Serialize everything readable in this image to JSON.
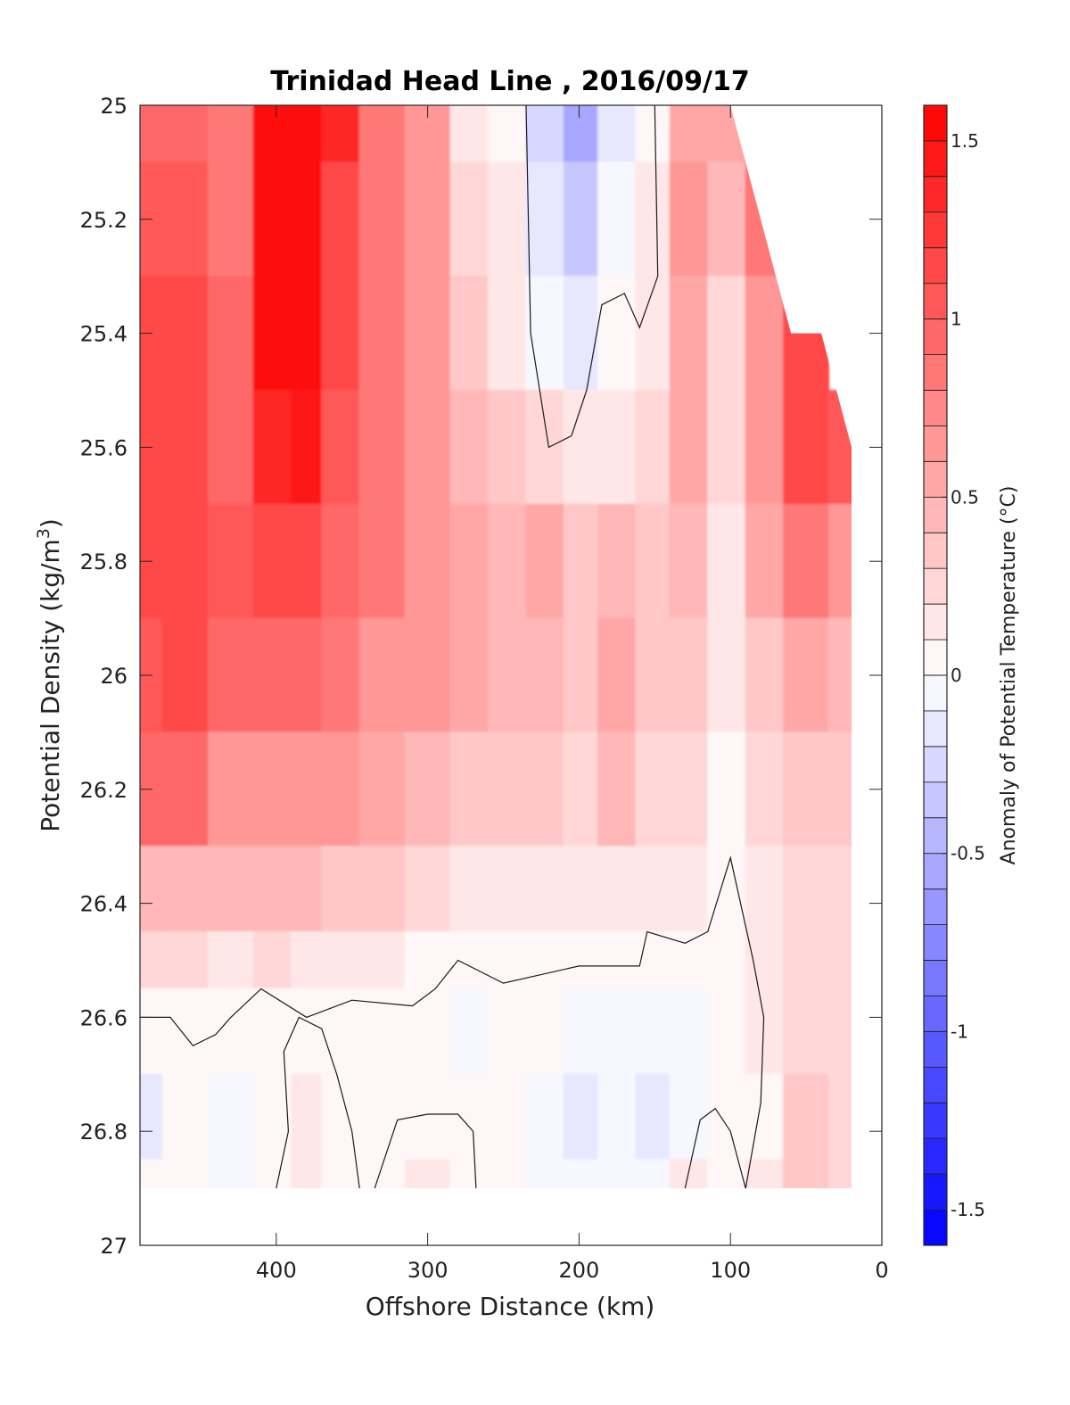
{
  "chart_data": {
    "type": "heatmap",
    "subtype": "filled-contour",
    "title": "Trinidad Head Line , 2016/09/17",
    "xlabel": "Offshore Distance (km)",
    "ylabel": "Potential Density (kg/m",
    "ylabel_sup": "3",
    "ylabel_end": ")",
    "colorbar_label": "Anomaly of Potential Temperature (°C)",
    "xlim": [
      490,
      0
    ],
    "ylim": [
      25,
      27
    ],
    "x_reversed": true,
    "y_reversed": true,
    "xticks": [
      400,
      300,
      200,
      100,
      0
    ],
    "xtick_labels": [
      "400",
      "300",
      "200",
      "100",
      "0"
    ],
    "yticks": [
      25,
      25.2,
      25.4,
      25.6,
      25.8,
      26,
      26.2,
      26.4,
      26.6,
      26.8,
      27
    ],
    "ytick_labels": [
      "25",
      "25.2",
      "25.4",
      "25.6",
      "25.8",
      "26",
      "26.2",
      "26.4",
      "26.6",
      "26.8",
      "27"
    ],
    "colorbar": {
      "range": [
        -1.6,
        1.6
      ],
      "step": 0.1,
      "ticks": [
        1.5,
        1,
        0.5,
        0,
        -0.5,
        -1,
        -1.5
      ],
      "tick_labels": [
        "1.5",
        "1",
        "0.5",
        "0",
        "-0.5",
        "-1",
        "-1.5"
      ],
      "colormap": "blue-white-red",
      "neg_color": "#0000ff",
      "zero_color": "#ffffff",
      "pos_color": "#ff0000"
    },
    "data_x": [
      490,
      460,
      430,
      400,
      380,
      360,
      330,
      300,
      270,
      250,
      220,
      200,
      175,
      150,
      130,
      100,
      80,
      50,
      20
    ],
    "data_y": [
      25.0,
      25.2,
      25.4,
      25.6,
      25.8,
      26.0,
      26.2,
      26.4,
      26.5,
      26.6,
      26.8,
      26.9
    ],
    "z": [
      [
        0.9,
        0.9,
        0.8,
        1.6,
        1.6,
        1.3,
        0.8,
        0.6,
        0.1,
        0.0,
        -0.3,
        -0.6,
        -0.2,
        0.0,
        0.5,
        0.5,
        1.0,
        null,
        null
      ],
      [
        1.0,
        1.0,
        0.8,
        1.6,
        1.6,
        1.2,
        0.8,
        0.6,
        0.2,
        0.1,
        -0.2,
        -0.4,
        -0.1,
        0.1,
        0.6,
        0.4,
        0.8,
        null,
        null
      ],
      [
        1.2,
        1.2,
        0.9,
        1.6,
        1.5,
        1.1,
        0.8,
        0.6,
        0.3,
        0.1,
        -0.1,
        -0.2,
        0.0,
        0.1,
        0.5,
        0.2,
        0.7,
        1.2,
        null
      ],
      [
        1.1,
        1.2,
        0.9,
        1.3,
        1.4,
        1.0,
        0.8,
        0.6,
        0.4,
        0.3,
        0.2,
        0.1,
        0.1,
        0.2,
        0.5,
        0.2,
        0.6,
        1.1,
        1.0
      ],
      [
        1.1,
        1.2,
        1.0,
        1.1,
        1.2,
        0.9,
        0.8,
        0.6,
        0.5,
        0.4,
        0.5,
        0.3,
        0.4,
        0.3,
        0.4,
        0.1,
        0.5,
        0.8,
        0.6
      ],
      [
        1.0,
        1.1,
        0.9,
        0.9,
        0.9,
        0.8,
        0.7,
        0.6,
        0.5,
        0.4,
        0.4,
        0.3,
        0.5,
        0.3,
        0.3,
        0.1,
        0.3,
        0.5,
        0.4
      ],
      [
        0.9,
        0.9,
        0.7,
        0.7,
        0.7,
        0.6,
        0.5,
        0.4,
        0.3,
        0.3,
        0.3,
        0.2,
        0.4,
        0.2,
        0.2,
        0.0,
        0.2,
        0.3,
        0.3
      ],
      [
        0.4,
        0.4,
        0.4,
        0.4,
        0.4,
        0.3,
        0.3,
        0.2,
        0.1,
        0.1,
        0.1,
        0.1,
        0.1,
        0.1,
        0.1,
        0.0,
        0.1,
        0.2,
        0.2
      ],
      [
        0.2,
        0.2,
        0.1,
        0.2,
        0.1,
        0.1,
        0.1,
        0.0,
        0.0,
        0.0,
        0.0,
        0.0,
        0.0,
        0.0,
        0.0,
        0.0,
        0.1,
        0.2,
        0.2
      ],
      [
        0.0,
        0.0,
        0.0,
        0.0,
        0.0,
        0.0,
        0.0,
        0.0,
        -0.1,
        0.0,
        0.0,
        -0.1,
        -0.1,
        -0.1,
        -0.1,
        0.0,
        0.1,
        0.2,
        0.2
      ],
      [
        -0.2,
        0.0,
        -0.1,
        0.0,
        0.1,
        0.0,
        0.0,
        0.0,
        0.0,
        0.0,
        -0.1,
        -0.2,
        -0.1,
        -0.2,
        -0.1,
        0.0,
        0.0,
        0.3,
        0.2
      ],
      [
        0.0,
        0.0,
        -0.1,
        0.0,
        0.1,
        0.0,
        0.0,
        0.1,
        0.0,
        0.0,
        -0.1,
        -0.1,
        -0.1,
        -0.1,
        0.1,
        0.0,
        0.1,
        0.3,
        0.2
      ]
    ],
    "zero_contours": [
      [
        [
          235,
          25.0
        ],
        [
          232,
          25.4
        ],
        [
          220,
          25.6
        ],
        [
          205,
          25.58
        ],
        [
          195,
          25.5
        ],
        [
          185,
          25.35
        ],
        [
          170,
          25.33
        ],
        [
          160,
          25.39
        ],
        [
          148,
          25.3
        ],
        [
          150,
          25.0
        ]
      ],
      [
        [
          490,
          26.6
        ],
        [
          470,
          26.6
        ],
        [
          455,
          26.65
        ],
        [
          440,
          26.63
        ],
        [
          430,
          26.6
        ],
        [
          410,
          26.55
        ],
        [
          380,
          26.6
        ],
        [
          350,
          26.57
        ],
        [
          310,
          26.58
        ],
        [
          295,
          26.55
        ],
        [
          280,
          26.5
        ],
        [
          250,
          26.54
        ],
        [
          200,
          26.51
        ],
        [
          160,
          26.51
        ],
        [
          155,
          26.45
        ],
        [
          130,
          26.47
        ],
        [
          115,
          26.45
        ],
        [
          100,
          26.32
        ],
        [
          85,
          26.5
        ],
        [
          78,
          26.6
        ],
        [
          80,
          26.75
        ],
        [
          90,
          26.9
        ]
      ],
      [
        [
          400,
          26.9
        ],
        [
          392,
          26.8
        ],
        [
          395,
          26.66
        ],
        [
          385,
          26.6
        ],
        [
          370,
          26.62
        ],
        [
          360,
          26.7
        ],
        [
          350,
          26.8
        ],
        [
          345,
          26.9
        ]
      ],
      [
        [
          335,
          26.9
        ],
        [
          320,
          26.78
        ],
        [
          300,
          26.77
        ],
        [
          280,
          26.77
        ],
        [
          270,
          26.8
        ],
        [
          268,
          26.9
        ]
      ],
      [
        [
          130,
          26.9
        ],
        [
          120,
          26.78
        ],
        [
          110,
          26.76
        ],
        [
          100,
          26.8
        ],
        [
          90,
          26.9
        ]
      ]
    ],
    "data_extent": {
      "x_range": [
        490,
        20
      ],
      "bottom_y": 26.9,
      "top_right_boundary": [
        [
          100,
          25.0
        ],
        [
          60,
          25.4
        ],
        [
          40,
          25.4
        ],
        [
          20,
          25.6
        ]
      ]
    }
  }
}
